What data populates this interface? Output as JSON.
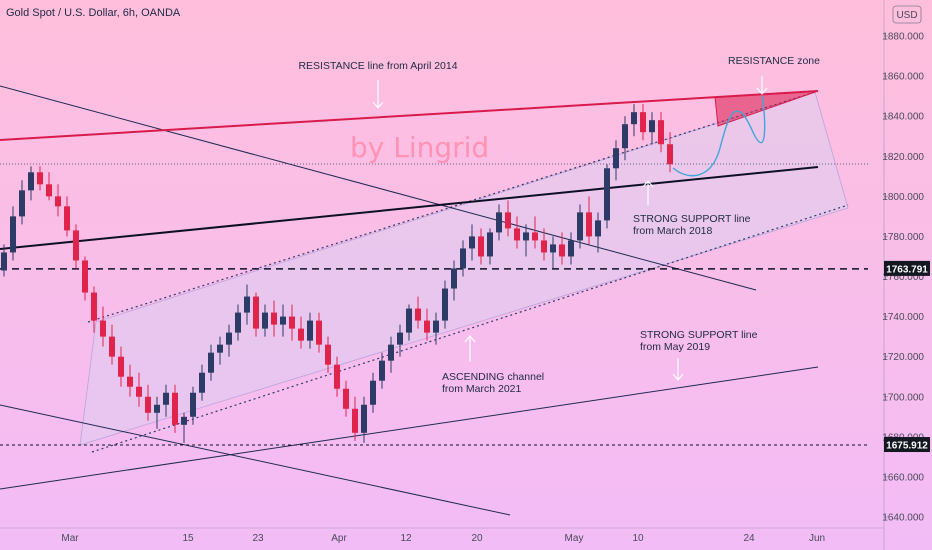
{
  "header": {
    "title": "Gold Spot / U.S. Dollar, 6h, OANDA"
  },
  "currency_badge": "USD",
  "watermark": "by Lingrid",
  "annotations": [
    {
      "id": "resistance-line",
      "lines": [
        "RESISTANCE line from April 2014"
      ]
    },
    {
      "id": "resistance-zone",
      "lines": [
        "RESISTANCE zone"
      ]
    },
    {
      "id": "support-2018",
      "lines": [
        "STRONG SUPPORT line",
        "from March 2018"
      ]
    },
    {
      "id": "support-2019",
      "lines": [
        "STRONG SUPPORT line",
        "from May 2019"
      ]
    },
    {
      "id": "ascending-channel",
      "lines": [
        "ASCENDING channel",
        "from March 2021"
      ]
    }
  ],
  "price_tags": [
    {
      "label": "1763.791",
      "value": 1763.791
    },
    {
      "label": "1675.912",
      "value": 1675.912
    }
  ],
  "colors": {
    "bg_top": "#ffbfdc",
    "bg_bottom": "#f2bcf6",
    "bull": "#2d3c66",
    "bear": "#e0244c",
    "resistance": "#d81b4c",
    "channel_fill": "#dccdf0",
    "tag_bg": "#131722"
  },
  "chart_data": {
    "type": "candlestick",
    "title": "Gold Spot / U.S. Dollar, 6h, OANDA",
    "xlabel": "",
    "ylabel": "",
    "ylim": [
      1636,
      1897
    ],
    "y_ticks": [
      1640,
      1660,
      1680,
      1700,
      1720,
      1740,
      1760,
      1780,
      1800,
      1820,
      1840,
      1860,
      1880
    ],
    "y_tick_labels": [
      "1640.000",
      "1660.000",
      "1680.000",
      "1700.000",
      "1720.000",
      "1740.000",
      "1760.000",
      "1780.000",
      "1800.000",
      "1820.000",
      "1840.000",
      "1860.000",
      "1880.000"
    ],
    "x_ticks": [
      "Mar",
      "15",
      "23",
      "Apr",
      "12",
      "20",
      "May",
      "10",
      "24",
      "Jun"
    ],
    "grid": false,
    "series": [
      {
        "values": [
          [
            1763,
            1776,
            1760,
            1772
          ],
          [
            1772,
            1795,
            1768,
            1790
          ],
          [
            1790,
            1808,
            1786,
            1803
          ],
          [
            1803,
            1815,
            1798,
            1812
          ],
          [
            1812,
            1815,
            1803,
            1806
          ],
          [
            1806,
            1812,
            1798,
            1800
          ],
          [
            1800,
            1806,
            1790,
            1795
          ],
          [
            1795,
            1800,
            1780,
            1783
          ],
          [
            1783,
            1786,
            1764,
            1768
          ],
          [
            1768,
            1770,
            1748,
            1752
          ],
          [
            1752,
            1755,
            1732,
            1738
          ],
          [
            1738,
            1745,
            1725,
            1730
          ],
          [
            1730,
            1736,
            1716,
            1720
          ],
          [
            1720,
            1725,
            1705,
            1710
          ],
          [
            1710,
            1716,
            1700,
            1705
          ],
          [
            1705,
            1712,
            1695,
            1700
          ],
          [
            1700,
            1706,
            1688,
            1692
          ],
          [
            1692,
            1700,
            1684,
            1696
          ],
          [
            1696,
            1706,
            1690,
            1702
          ],
          [
            1702,
            1706,
            1682,
            1686
          ],
          [
            1686,
            1692,
            1677,
            1690
          ],
          [
            1690,
            1705,
            1686,
            1702
          ],
          [
            1702,
            1716,
            1698,
            1712
          ],
          [
            1712,
            1726,
            1708,
            1722
          ],
          [
            1722,
            1730,
            1716,
            1726
          ],
          [
            1726,
            1736,
            1720,
            1732
          ],
          [
            1732,
            1746,
            1728,
            1742
          ],
          [
            1742,
            1756,
            1736,
            1750
          ],
          [
            1750,
            1752,
            1730,
            1734
          ],
          [
            1734,
            1746,
            1730,
            1742
          ],
          [
            1742,
            1748,
            1730,
            1736
          ],
          [
            1736,
            1746,
            1730,
            1740
          ],
          [
            1740,
            1746,
            1728,
            1734
          ],
          [
            1734,
            1740,
            1724,
            1728
          ],
          [
            1728,
            1742,
            1724,
            1738
          ],
          [
            1738,
            1742,
            1722,
            1726
          ],
          [
            1726,
            1730,
            1712,
            1716
          ],
          [
            1716,
            1720,
            1700,
            1704
          ],
          [
            1704,
            1708,
            1690,
            1694
          ],
          [
            1694,
            1700,
            1678,
            1682
          ],
          [
            1682,
            1700,
            1677,
            1696
          ],
          [
            1696,
            1712,
            1692,
            1708
          ],
          [
            1708,
            1722,
            1704,
            1718
          ],
          [
            1718,
            1730,
            1712,
            1726
          ],
          [
            1726,
            1736,
            1720,
            1732
          ],
          [
            1732,
            1746,
            1728,
            1744
          ],
          [
            1744,
            1750,
            1734,
            1738
          ],
          [
            1738,
            1744,
            1728,
            1732
          ],
          [
            1732,
            1742,
            1726,
            1738
          ],
          [
            1738,
            1758,
            1734,
            1754
          ],
          [
            1754,
            1768,
            1748,
            1764
          ],
          [
            1764,
            1778,
            1760,
            1774
          ],
          [
            1774,
            1786,
            1768,
            1780
          ],
          [
            1780,
            1784,
            1766,
            1770
          ],
          [
            1770,
            1784,
            1766,
            1782
          ],
          [
            1782,
            1796,
            1778,
            1792
          ],
          [
            1792,
            1798,
            1780,
            1784
          ],
          [
            1784,
            1790,
            1774,
            1778
          ],
          [
            1778,
            1786,
            1770,
            1782
          ],
          [
            1782,
            1790,
            1774,
            1778
          ],
          [
            1778,
            1784,
            1768,
            1772
          ],
          [
            1772,
            1780,
            1764,
            1776
          ],
          [
            1776,
            1782,
            1766,
            1770
          ],
          [
            1770,
            1782,
            1766,
            1778
          ],
          [
            1778,
            1796,
            1774,
            1792
          ],
          [
            1792,
            1800,
            1776,
            1780
          ],
          [
            1780,
            1792,
            1772,
            1788
          ],
          [
            1788,
            1816,
            1784,
            1814
          ],
          [
            1814,
            1828,
            1808,
            1824
          ],
          [
            1824,
            1840,
            1818,
            1836
          ],
          [
            1836,
            1846,
            1830,
            1842
          ],
          [
            1842,
            1846,
            1828,
            1832
          ],
          [
            1832,
            1842,
            1826,
            1838
          ],
          [
            1838,
            1842,
            1822,
            1826
          ],
          [
            1826,
            1832,
            1812,
            1816
          ]
        ]
      }
    ]
  }
}
